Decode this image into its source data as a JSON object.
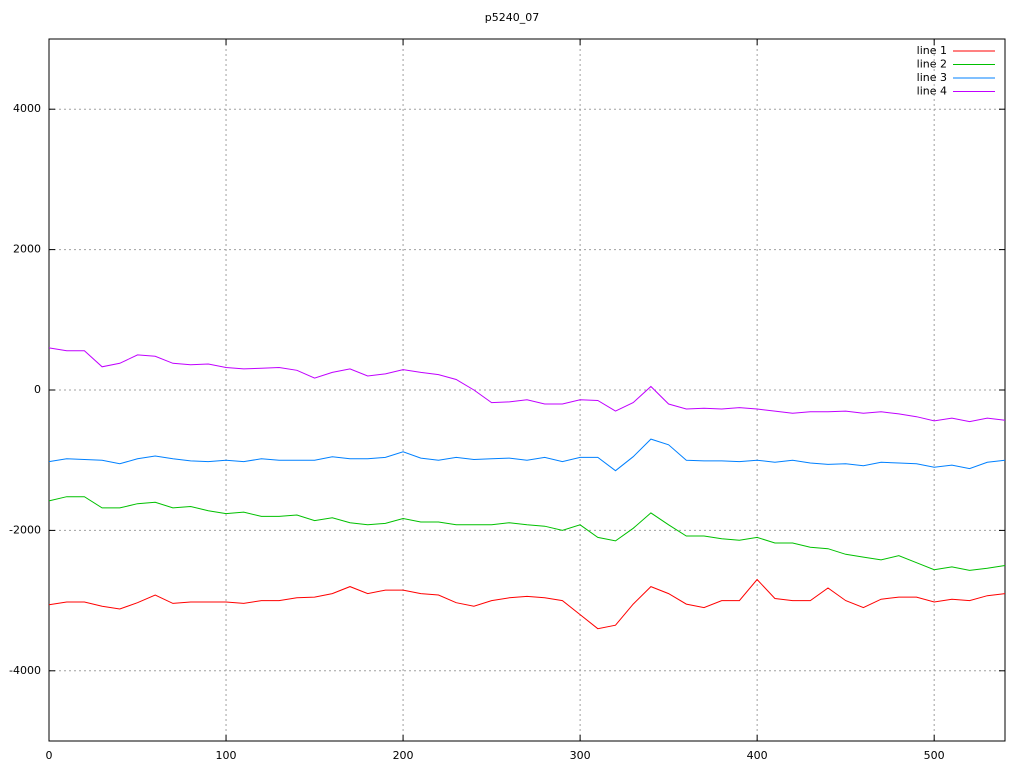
{
  "chart_data": {
    "type": "line",
    "title": "p5240_07",
    "x": [
      0,
      10,
      20,
      30,
      40,
      50,
      60,
      70,
      80,
      90,
      100,
      110,
      120,
      130,
      140,
      150,
      160,
      170,
      180,
      190,
      200,
      210,
      220,
      230,
      240,
      250,
      260,
      270,
      280,
      290,
      300,
      310,
      320,
      330,
      340,
      350,
      360,
      370,
      380,
      390,
      400,
      410,
      420,
      430,
      440,
      450,
      460,
      470,
      480,
      490,
      500,
      510,
      520,
      530,
      540
    ],
    "series": [
      {
        "name": "line 1",
        "color": "#ff0000",
        "values": [
          -3060,
          -3020,
          -3020,
          -3080,
          -3120,
          -3030,
          -2920,
          -3040,
          -3020,
          -3020,
          -3020,
          -3040,
          -3000,
          -3000,
          -2960,
          -2950,
          -2900,
          -2800,
          -2900,
          -2850,
          -2850,
          -2900,
          -2920,
          -3030,
          -3080,
          -3000,
          -2960,
          -2940,
          -2960,
          -3000,
          -3200,
          -3400,
          -3350,
          -3050,
          -2800,
          -2900,
          -3050,
          -3100,
          -3000,
          -3000,
          -2700,
          -2970,
          -3000,
          -3000,
          -2820,
          -3000,
          -3100,
          -2980,
          -2950,
          -2950,
          -3020,
          -2980,
          -3000,
          -2930,
          -2900
        ]
      },
      {
        "name": "line 2",
        "color": "#00c000",
        "values": [
          -1580,
          -1520,
          -1520,
          -1680,
          -1680,
          -1620,
          -1600,
          -1680,
          -1660,
          -1720,
          -1760,
          -1740,
          -1800,
          -1800,
          -1780,
          -1860,
          -1820,
          -1890,
          -1920,
          -1900,
          -1830,
          -1880,
          -1880,
          -1920,
          -1920,
          -1920,
          -1890,
          -1920,
          -1940,
          -2000,
          -1920,
          -2100,
          -2150,
          -1970,
          -1750,
          -1920,
          -2080,
          -2080,
          -2120,
          -2140,
          -2100,
          -2180,
          -2180,
          -2240,
          -2260,
          -2340,
          -2380,
          -2420,
          -2360,
          -2460,
          -2560,
          -2520,
          -2570,
          -2540,
          -2500
        ]
      },
      {
        "name": "line 3",
        "color": "#0080ff",
        "values": [
          -1020,
          -980,
          -990,
          -1000,
          -1050,
          -980,
          -940,
          -980,
          -1010,
          -1020,
          -1000,
          -1020,
          -980,
          -1000,
          -1000,
          -1000,
          -950,
          -980,
          -980,
          -960,
          -880,
          -970,
          -1000,
          -960,
          -990,
          -980,
          -970,
          -1000,
          -960,
          -1020,
          -960,
          -960,
          -1150,
          -950,
          -700,
          -780,
          -1000,
          -1010,
          -1010,
          -1020,
          -1000,
          -1030,
          -1000,
          -1040,
          -1060,
          -1050,
          -1080,
          -1030,
          -1040,
          -1050,
          -1100,
          -1070,
          -1120,
          -1030,
          -1000
        ]
      },
      {
        "name": "line 4",
        "color": "#c000ff",
        "values": [
          600,
          560,
          560,
          330,
          380,
          500,
          480,
          380,
          360,
          370,
          320,
          300,
          310,
          320,
          280,
          170,
          250,
          300,
          200,
          230,
          290,
          250,
          220,
          150,
          0,
          -180,
          -170,
          -140,
          -200,
          -200,
          -140,
          -150,
          -300,
          -180,
          50,
          -200,
          -270,
          -260,
          -270,
          -250,
          -270,
          -300,
          -330,
          -310,
          -310,
          -300,
          -330,
          -310,
          -340,
          -380,
          -440,
          -400,
          -450,
          -400,
          -430
        ]
      }
    ],
    "xlim": [
      0,
      540
    ],
    "xticks": [
      0,
      100,
      200,
      300,
      400,
      500
    ],
    "ylim": [
      -5000,
      5000
    ],
    "yticks": [
      -4000,
      -2000,
      0,
      2000,
      4000
    ],
    "grid": true,
    "legend": "top-right"
  }
}
